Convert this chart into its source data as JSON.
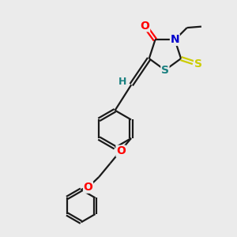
{
  "bg_color": "#ebebeb",
  "bond_color": "#1a1a1a",
  "atom_colors": {
    "O": "#ff0000",
    "N": "#0000cd",
    "S_exo": "#cccc00",
    "S_ring": "#1a8080",
    "H": "#1a8080",
    "C": "#1a1a1a"
  },
  "line_width": 1.6,
  "font_size_atom": 10,
  "font_size_small": 9,
  "figsize": [
    3.0,
    3.0
  ],
  "dpi": 100
}
